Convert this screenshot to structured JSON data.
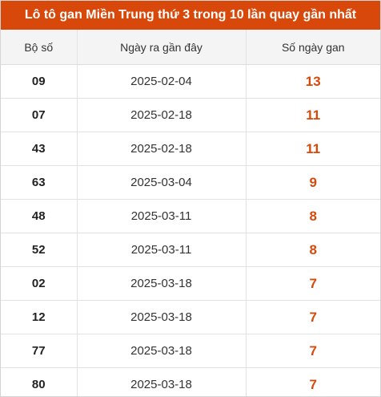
{
  "title": "Lô tô gan Miền Trung thứ 3 trong 10 lần quay gần nhất",
  "columns": {
    "number": "Bộ số",
    "last_date": "Ngày ra gần đây",
    "days": "Số ngày gan"
  },
  "rows": [
    {
      "number": "09",
      "date": "2025-02-04",
      "days": "13"
    },
    {
      "number": "07",
      "date": "2025-02-18",
      "days": "11"
    },
    {
      "number": "43",
      "date": "2025-02-18",
      "days": "11"
    },
    {
      "number": "63",
      "date": "2025-03-04",
      "days": "9"
    },
    {
      "number": "48",
      "date": "2025-03-11",
      "days": "8"
    },
    {
      "number": "52",
      "date": "2025-03-11",
      "days": "8"
    },
    {
      "number": "02",
      "date": "2025-03-18",
      "days": "7"
    },
    {
      "number": "12",
      "date": "2025-03-18",
      "days": "7"
    },
    {
      "number": "77",
      "date": "2025-03-18",
      "days": "7"
    },
    {
      "number": "80",
      "date": "2025-03-18",
      "days": "7"
    }
  ],
  "colors": {
    "accent": "#d9480b",
    "header_bg": "#f4f4f4"
  }
}
